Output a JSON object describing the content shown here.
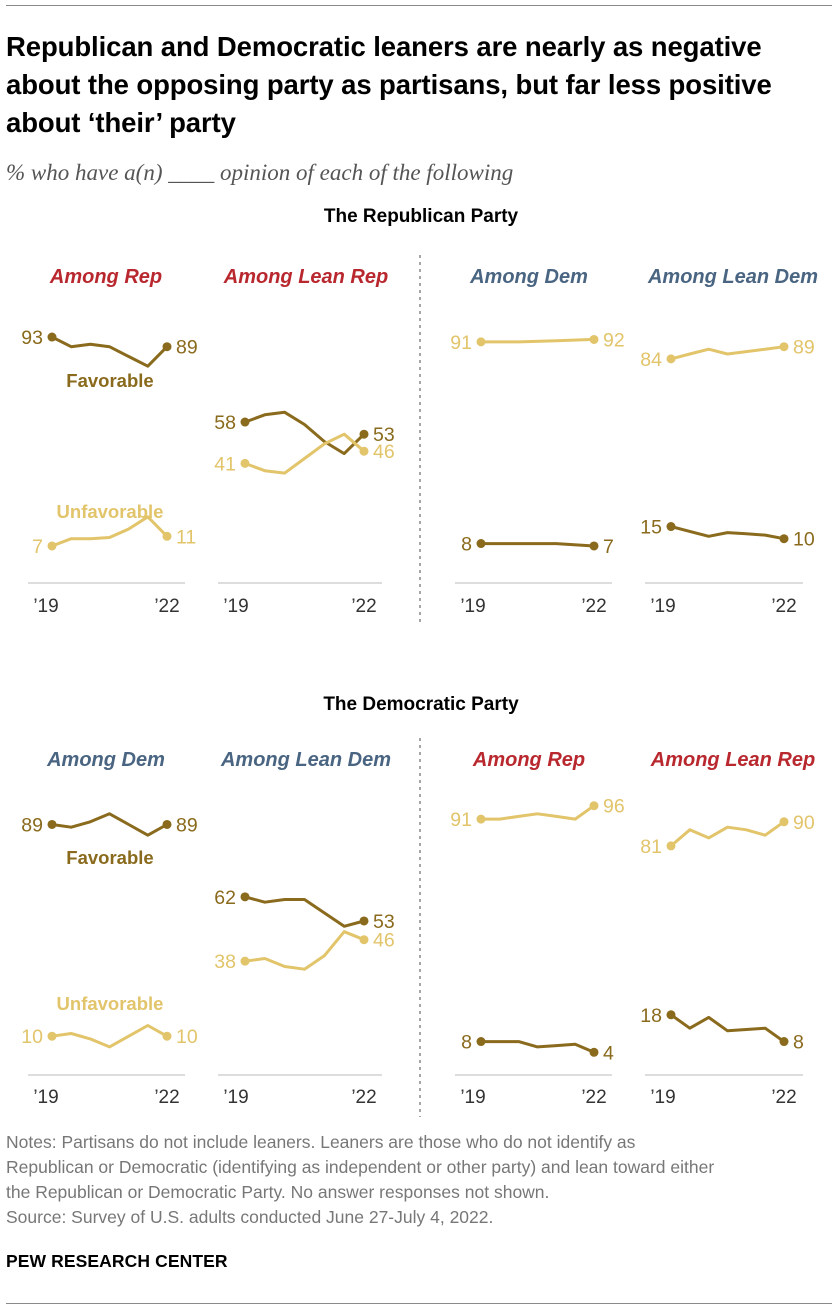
{
  "title": "Republican and Democratic leaners are nearly as negative about the opposing party as partisans, but far less positive about ‘their’ party",
  "subtitle": "% who have a(n) ____ opinion of each of the following",
  "colors": {
    "favorable": "#8a6a1c",
    "unfavorable": "#e2c46a",
    "rep": "#b8282e",
    "dem": "#4a6582",
    "axis": "#bbbbbb",
    "divider": "#777777"
  },
  "chart_data": [
    {
      "type": "line",
      "title": "The Republican Party",
      "x_tick_labels": [
        "’19",
        "’22"
      ],
      "legend": [
        "Favorable",
        "Unfavorable"
      ],
      "panels": [
        {
          "label": "Among Rep",
          "party": "rep",
          "series": [
            {
              "name": "Favorable",
              "x": [
                2019,
                2019.5,
                2020,
                2020.5,
                2021,
                2021.5,
                2022
              ],
              "values": [
                93,
                89,
                90,
                89,
                85,
                81,
                89
              ],
              "start_label": "93",
              "end_label": "89"
            },
            {
              "name": "Unfavorable",
              "x": [
                2019,
                2019.5,
                2020,
                2020.5,
                2021,
                2021.5,
                2022
              ],
              "values": [
                7,
                10,
                10,
                10.5,
                14,
                19,
                11
              ],
              "start_label": "7",
              "end_label": "11"
            }
          ]
        },
        {
          "label": "Among Lean Rep",
          "party": "rep",
          "series": [
            {
              "name": "Favorable",
              "x": [
                2019,
                2019.5,
                2020,
                2020.5,
                2021,
                2021.5,
                2022
              ],
              "values": [
                58,
                61,
                62,
                57,
                50,
                45,
                53
              ],
              "start_label": "58",
              "end_label": "53"
            },
            {
              "name": "Unfavorable",
              "x": [
                2019,
                2019.5,
                2020,
                2020.5,
                2021,
                2021.5,
                2022
              ],
              "values": [
                41,
                38,
                37,
                43,
                49,
                53,
                46
              ],
              "start_label": "41",
              "end_label": "46"
            }
          ]
        },
        {
          "label": "Among Dem",
          "party": "dem",
          "series": [
            {
              "name": "Favorable",
              "x": [
                2019,
                2020,
                2021,
                2022
              ],
              "values": [
                8,
                8,
                8,
                7
              ],
              "start_label": "8",
              "end_label": "7"
            },
            {
              "name": "Unfavorable",
              "x": [
                2019,
                2020,
                2021,
                2022
              ],
              "values": [
                91,
                91,
                91.5,
                92
              ],
              "start_label": "91",
              "end_label": "92"
            }
          ]
        },
        {
          "label": "Among Lean Dem",
          "party": "dem",
          "series": [
            {
              "name": "Favorable",
              "x": [
                2019,
                2019.5,
                2020,
                2020.5,
                2021,
                2021.5,
                2022
              ],
              "values": [
                15,
                13,
                11,
                12.5,
                12,
                11.5,
                10
              ],
              "start_label": "15",
              "end_label": "10"
            },
            {
              "name": "Unfavorable",
              "x": [
                2019,
                2019.5,
                2020,
                2020.5,
                2021,
                2021.5,
                2022
              ],
              "values": [
                84,
                86,
                88,
                86,
                87,
                88,
                89
              ],
              "start_label": "84",
              "end_label": "89"
            }
          ]
        }
      ]
    },
    {
      "type": "line",
      "title": "The Democratic Party",
      "x_tick_labels": [
        "’19",
        "’22"
      ],
      "legend": [
        "Favorable",
        "Unfavorable"
      ],
      "panels": [
        {
          "label": "Among Dem",
          "party": "dem",
          "series": [
            {
              "name": "Favorable",
              "x": [
                2019,
                2019.5,
                2020,
                2020.5,
                2021,
                2021.5,
                2022
              ],
              "values": [
                89,
                88,
                90,
                93,
                89,
                85,
                89
              ],
              "start_label": "89",
              "end_label": "89"
            },
            {
              "name": "Unfavorable",
              "x": [
                2019,
                2019.5,
                2020,
                2020.5,
                2021,
                2021.5,
                2022
              ],
              "values": [
                10,
                11,
                9,
                6,
                10,
                14,
                10
              ],
              "start_label": "10",
              "end_label": "10"
            }
          ]
        },
        {
          "label": "Among Lean Dem",
          "party": "dem",
          "series": [
            {
              "name": "Favorable",
              "x": [
                2019,
                2019.5,
                2020,
                2020.5,
                2021,
                2021.5,
                2022
              ],
              "values": [
                62,
                60,
                61,
                61,
                56,
                51,
                53
              ],
              "start_label": "62",
              "end_label": "53"
            },
            {
              "name": "Unfavorable",
              "x": [
                2019,
                2019.5,
                2020,
                2020.5,
                2021,
                2021.5,
                2022
              ],
              "values": [
                38,
                39,
                36,
                35,
                40,
                49,
                46
              ],
              "start_label": "38",
              "end_label": "46"
            }
          ]
        },
        {
          "label": "Among Rep",
          "party": "rep",
          "series": [
            {
              "name": "Favorable",
              "x": [
                2019,
                2019.5,
                2020,
                2020.5,
                2021,
                2021.5,
                2022
              ],
              "values": [
                8,
                8,
                8,
                6,
                6.5,
                7,
                4
              ],
              "start_label": "8",
              "end_label": "4"
            },
            {
              "name": "Unfavorable",
              "x": [
                2019,
                2019.5,
                2020,
                2020.5,
                2021,
                2021.5,
                2022
              ],
              "values": [
                91,
                91,
                92,
                93,
                92,
                91,
                96
              ],
              "start_label": "91",
              "end_label": "96"
            }
          ]
        },
        {
          "label": "Among Lean Rep",
          "party": "rep",
          "series": [
            {
              "name": "Favorable",
              "x": [
                2019,
                2019.5,
                2020,
                2020.5,
                2021,
                2021.5,
                2022
              ],
              "values": [
                18,
                13,
                17,
                12,
                12.5,
                13,
                8
              ],
              "start_label": "18",
              "end_label": "8"
            },
            {
              "name": "Unfavorable",
              "x": [
                2019,
                2019.5,
                2020,
                2020.5,
                2021,
                2021.5,
                2022
              ],
              "values": [
                81,
                87,
                84,
                88,
                87,
                85,
                90
              ],
              "start_label": "81",
              "end_label": "90"
            }
          ]
        }
      ]
    }
  ],
  "notes": [
    "Notes: Partisans do not include leaners. Leaners are those who do not identify as",
    "Republican or Democratic (identifying as independent or other party) and lean toward either",
    "the Republican or Democratic Party. No answer responses not shown.",
    "Source: Survey of U.S. adults conducted June 27-July 4, 2022."
  ],
  "brand": "PEW RESEARCH CENTER"
}
